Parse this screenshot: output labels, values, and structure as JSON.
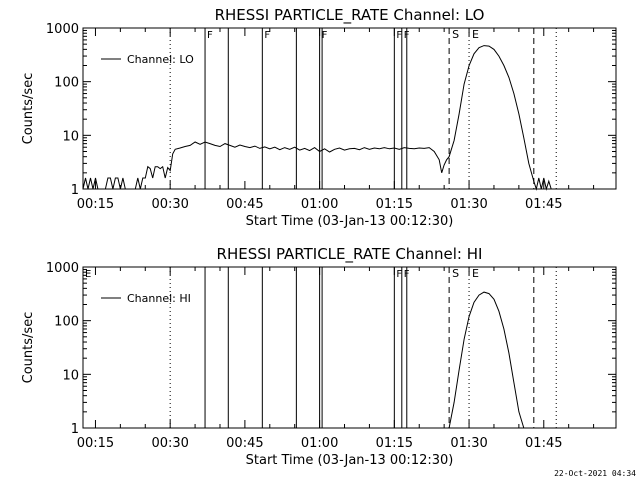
{
  "footer": {
    "timestamp": "22-Oct-2021 04:34"
  },
  "chart_data": [
    {
      "type": "line",
      "title": "RHESSI PARTICLE_RATE Channel: LO",
      "xlabel": "Start Time (03-Jan-13 00:12:30)",
      "ylabel": "Counts/sec",
      "y_scale": "log",
      "xlim": [
        "00:12:30",
        "01:59:30"
      ],
      "ylim": [
        1,
        1000
      ],
      "x_ticks": [
        "00:15",
        "00:30",
        "00:45",
        "01:00",
        "01:15",
        "01:30",
        "01:45"
      ],
      "y_ticks": [
        "1",
        "10",
        "100",
        "1000"
      ],
      "grid": false,
      "legend": {
        "placement": "top-left",
        "entries": [
          "Channel: LO"
        ]
      },
      "flags": [
        {
          "time": "00:37:00",
          "label": "F",
          "style": "solid"
        },
        {
          "time": "00:41:40",
          "label": "",
          "style": "solid"
        },
        {
          "time": "00:48:30",
          "label": "F",
          "style": "solid"
        },
        {
          "time": "00:55:20",
          "label": "",
          "style": "solid"
        },
        {
          "time": "01:00:00",
          "label": "F",
          "style": "solid"
        },
        {
          "time": "01:00:30",
          "label": "",
          "style": "solid"
        },
        {
          "time": "01:15:00",
          "label": "F",
          "style": "solid"
        },
        {
          "time": "01:16:30",
          "label": "F",
          "style": "solid"
        },
        {
          "time": "01:17:30",
          "label": "",
          "style": "solid"
        }
      ],
      "markers": [
        {
          "time": "00:30:00",
          "label": "",
          "style": "dotted"
        },
        {
          "time": "01:26:00",
          "label": "S",
          "style": "dashed"
        },
        {
          "time": "01:30:00",
          "label": "E",
          "style": "dotted"
        },
        {
          "time": "01:43:00",
          "label": "",
          "style": "dashed"
        },
        {
          "time": "01:47:30",
          "label": "",
          "style": "dotted"
        }
      ],
      "series": [
        {
          "name": "Channel: LO",
          "points": [
            [
              "00:12:30",
              1
            ],
            [
              "00:13:00",
              1.6
            ],
            [
              "00:13:30",
              1
            ],
            [
              "00:14:00",
              1.6
            ],
            [
              "00:14:30",
              1
            ],
            [
              "00:15:00",
              1.6
            ],
            [
              "00:15:30",
              1
            ],
            [
              "00:17:00",
              1
            ],
            [
              "00:17:30",
              1.6
            ],
            [
              "00:18:00",
              1.6
            ],
            [
              "00:18:30",
              1
            ],
            [
              "00:19:00",
              1.6
            ],
            [
              "00:19:30",
              1.6
            ],
            [
              "00:20:00",
              1
            ],
            [
              "00:20:30",
              1.6
            ],
            [
              "00:21:00",
              1
            ],
            [
              "00:23:00",
              1
            ],
            [
              "00:23:30",
              1.6
            ],
            [
              "00:24:00",
              1
            ],
            [
              "00:24:30",
              1.6
            ],
            [
              "00:25:00",
              1.6
            ],
            [
              "00:25:30",
              2.6
            ],
            [
              "00:26:00",
              2.4
            ],
            [
              "00:26:30",
              1.6
            ],
            [
              "00:27:00",
              2.6
            ],
            [
              "00:27:30",
              2.6
            ],
            [
              "00:28:00",
              2.4
            ],
            [
              "00:28:30",
              2.6
            ],
            [
              "00:29:00",
              1.6
            ],
            [
              "00:29:30",
              2.5
            ],
            [
              "00:30:00",
              2.2
            ],
            [
              "00:30:30",
              4.5
            ],
            [
              "00:31:00",
              5.5
            ],
            [
              "00:32:00",
              5.8
            ],
            [
              "00:33:00",
              6.2
            ],
            [
              "00:34:00",
              6.5
            ],
            [
              "00:35:00",
              7.5
            ],
            [
              "00:36:00",
              6.8
            ],
            [
              "00:37:00",
              7.5
            ],
            [
              "00:38:00",
              7.0
            ],
            [
              "00:39:00",
              6.5
            ],
            [
              "00:40:00",
              6.2
            ],
            [
              "00:41:00",
              7.0
            ],
            [
              "00:42:00",
              6.5
            ],
            [
              "00:43:00",
              6.0
            ],
            [
              "00:44:00",
              6.6
            ],
            [
              "00:45:00",
              6.2
            ],
            [
              "00:46:00",
              5.9
            ],
            [
              "00:47:00",
              6.3
            ],
            [
              "00:48:00",
              5.7
            ],
            [
              "00:49:00",
              6.1
            ],
            [
              "00:50:00",
              5.6
            ],
            [
              "00:51:00",
              6.0
            ],
            [
              "00:52:00",
              5.4
            ],
            [
              "00:53:00",
              5.9
            ],
            [
              "00:54:00",
              5.5
            ],
            [
              "00:55:00",
              6.0
            ],
            [
              "00:56:00",
              5.3
            ],
            [
              "00:57:00",
              5.7
            ],
            [
              "00:58:00",
              5.2
            ],
            [
              "00:59:00",
              5.9
            ],
            [
              "01:00:00",
              5.0
            ],
            [
              "01:01:00",
              5.6
            ],
            [
              "01:02:00",
              4.9
            ],
            [
              "01:03:00",
              5.5
            ],
            [
              "01:04:00",
              5.8
            ],
            [
              "01:05:00",
              5.3
            ],
            [
              "01:06:00",
              5.6
            ],
            [
              "01:07:00",
              5.7
            ],
            [
              "01:08:00",
              5.4
            ],
            [
              "01:09:00",
              5.9
            ],
            [
              "01:10:00",
              5.5
            ],
            [
              "01:11:00",
              5.8
            ],
            [
              "01:12:00",
              5.6
            ],
            [
              "01:13:00",
              5.9
            ],
            [
              "01:14:00",
              5.6
            ],
            [
              "01:15:00",
              5.8
            ],
            [
              "01:16:00",
              5.5
            ],
            [
              "01:17:00",
              5.9
            ],
            [
              "01:18:00",
              5.7
            ],
            [
              "01:19:00",
              5.6
            ],
            [
              "01:20:00",
              5.8
            ],
            [
              "01:21:00",
              5.7
            ],
            [
              "01:22:00",
              5.9
            ],
            [
              "01:23:00",
              5.0
            ],
            [
              "01:24:00",
              3.5
            ],
            [
              "01:24:30",
              2.0
            ],
            [
              "01:25:00",
              2.8
            ],
            [
              "01:25:30",
              3.5
            ],
            [
              "01:26:00",
              4.0
            ],
            [
              "01:27:00",
              8
            ],
            [
              "01:28:00",
              25
            ],
            [
              "01:29:00",
              90
            ],
            [
              "01:30:00",
              200
            ],
            [
              "01:31:00",
              330
            ],
            [
              "01:32:00",
              430
            ],
            [
              "01:33:00",
              470
            ],
            [
              "01:34:00",
              460
            ],
            [
              "01:35:00",
              400
            ],
            [
              "01:36:00",
              300
            ],
            [
              "01:37:00",
              200
            ],
            [
              "01:38:00",
              120
            ],
            [
              "01:39:00",
              60
            ],
            [
              "01:40:00",
              25
            ],
            [
              "01:41:00",
              9
            ],
            [
              "01:42:00",
              3
            ],
            [
              "01:43:00",
              1.4
            ],
            [
              "01:43:30",
              1
            ],
            [
              "01:44:00",
              1.6
            ],
            [
              "01:44:30",
              1
            ],
            [
              "01:45:00",
              1.6
            ],
            [
              "01:45:30",
              1
            ],
            [
              "01:46:00",
              1.4
            ],
            [
              "01:46:30",
              1
            ]
          ]
        }
      ]
    },
    {
      "type": "line",
      "title": "RHESSI PARTICLE_RATE Channel: HI",
      "xlabel": "Start Time (03-Jan-13 00:12:30)",
      "ylabel": "Counts/sec",
      "y_scale": "log",
      "xlim": [
        "00:12:30",
        "01:59:30"
      ],
      "ylim": [
        1,
        1000
      ],
      "x_ticks": [
        "00:15",
        "00:30",
        "00:45",
        "01:00",
        "01:15",
        "01:30",
        "01:45"
      ],
      "y_ticks": [
        "1",
        "10",
        "100",
        "1000"
      ],
      "grid": false,
      "legend": {
        "placement": "top-left",
        "entries": [
          "Channel: HI"
        ]
      },
      "flags": [
        {
          "time": "00:12:30",
          "label": "E",
          "style": "none"
        },
        {
          "time": "00:37:00",
          "label": "",
          "style": "solid"
        },
        {
          "time": "00:41:40",
          "label": "",
          "style": "solid"
        },
        {
          "time": "00:48:30",
          "label": "",
          "style": "solid"
        },
        {
          "time": "00:55:20",
          "label": "",
          "style": "solid"
        },
        {
          "time": "01:00:00",
          "label": "",
          "style": "solid"
        },
        {
          "time": "01:00:30",
          "label": "",
          "style": "solid"
        },
        {
          "time": "01:15:00",
          "label": "F",
          "style": "solid"
        },
        {
          "time": "01:16:30",
          "label": "F",
          "style": "solid"
        },
        {
          "time": "01:17:30",
          "label": "",
          "style": "solid"
        }
      ],
      "markers": [
        {
          "time": "00:30:00",
          "label": "",
          "style": "dotted"
        },
        {
          "time": "01:26:00",
          "label": "S",
          "style": "dashed"
        },
        {
          "time": "01:30:00",
          "label": "E",
          "style": "dotted"
        },
        {
          "time": "01:43:00",
          "label": "",
          "style": "dashed"
        },
        {
          "time": "01:47:30",
          "label": "",
          "style": "dotted"
        }
      ],
      "series": [
        {
          "name": "Channel: HI",
          "points": [
            [
              "01:26:00",
              1
            ],
            [
              "01:27:00",
              3
            ],
            [
              "01:28:00",
              12
            ],
            [
              "01:29:00",
              45
            ],
            [
              "01:30:00",
              120
            ],
            [
              "01:31:00",
              220
            ],
            [
              "01:32:00",
              300
            ],
            [
              "01:33:00",
              340
            ],
            [
              "01:34:00",
              320
            ],
            [
              "01:35:00",
              250
            ],
            [
              "01:36:00",
              150
            ],
            [
              "01:37:00",
              70
            ],
            [
              "01:38:00",
              25
            ],
            [
              "01:39:00",
              7
            ],
            [
              "01:40:00",
              2
            ],
            [
              "01:41:00",
              1
            ]
          ]
        }
      ]
    }
  ]
}
